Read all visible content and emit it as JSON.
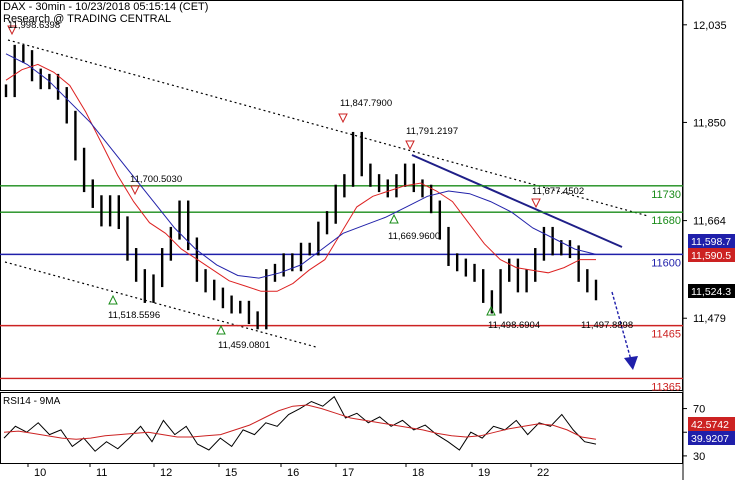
{
  "header": {
    "line1": "DAX - 30min - 10/23/2018 05:15:14 (CET)",
    "line2": "Research @ TRADING CENTRAL"
  },
  "chart_data": [
    {
      "type": "line",
      "title": "DAX - 30min",
      "y_ticks": [
        12035,
        11850,
        11664,
        11479
      ],
      "y_tick_labels": [
        "12,035",
        "11,850",
        "11,664",
        "11,479"
      ],
      "ylim": [
        11343,
        12082
      ],
      "x_tick_labels": [
        "10",
        "11",
        "12",
        "15",
        "16",
        "17",
        "18",
        "19",
        "22"
      ],
      "grid": false,
      "horizontal_levels": [
        {
          "label": "11730",
          "value": 11730,
          "color": "#1a8c1a"
        },
        {
          "label": "11680",
          "value": 11680,
          "color": "#1a8c1a"
        },
        {
          "label": "11600",
          "value": 11600,
          "color": "#1f1faa"
        },
        {
          "label": "11465",
          "value": 11465,
          "color": "#cc2222"
        },
        {
          "label": "11365",
          "value": 11365,
          "color": "#cc2222"
        }
      ],
      "price_tags": [
        {
          "label": "11,598.7",
          "value": 11598.7,
          "color": "#1f1faa"
        },
        {
          "label": "11,590.5",
          "value": 11590.5,
          "color": "#cc2222"
        },
        {
          "label": "11,524.3",
          "value": 11524.3,
          "color": "#000000"
        }
      ],
      "annotations": [
        {
          "label": "11,998.6398",
          "value": 11998.6398,
          "marker": "down"
        },
        {
          "label": "11,847.7900",
          "value": 11847.79,
          "marker": "down"
        },
        {
          "label": "11,791.2197",
          "value": 11791.2197,
          "marker": "down"
        },
        {
          "label": "11,700.5030",
          "value": 11700.503,
          "marker": "down"
        },
        {
          "label": "11,677.4502",
          "value": 11677.4502,
          "marker": "down"
        },
        {
          "label": "11,669.9600",
          "value": 11669.96,
          "marker": "up"
        },
        {
          "label": "11,518.5596",
          "value": 11518.5596,
          "marker": "up"
        },
        {
          "label": "11,459.0801",
          "value": 11459.0801,
          "marker": "up"
        },
        {
          "label": "11,498.6904",
          "value": 11498.6904,
          "marker": "up"
        },
        {
          "label": "11,497.8898",
          "value": 11497.8898,
          "marker": "none"
        }
      ],
      "series": [
        {
          "name": "DAX",
          "kind": "bars",
          "color": "#000000",
          "values": [
            11910,
            11985,
            11975,
            11940,
            11925,
            11930,
            11905,
            11860,
            11790,
            11730,
            11700,
            11665,
            11700,
            11660,
            11600,
            11560,
            11520,
            11550,
            11600,
            11640,
            11690,
            11620,
            11560,
            11540,
            11525,
            11510,
            11500,
            11500,
            11480,
            11470,
            11560,
            11570,
            11590,
            11580,
            11610,
            11610,
            11650,
            11670,
            11720,
            11740,
            11820,
            11760,
            11740,
            11730,
            11720,
            11740,
            11760,
            11730,
            11720,
            11690,
            11640,
            11590,
            11580,
            11570,
            11560,
            11520,
            11500,
            11560,
            11580,
            11540,
            11560,
            11600,
            11640,
            11610,
            11615,
            11605,
            11560,
            11540,
            11525
          ]
        },
        {
          "name": "MA fast",
          "kind": "line",
          "color": "#dd2222",
          "values": [
            11930,
            11950,
            11960,
            11945,
            11920,
            11870,
            11810,
            11750,
            11700,
            11660,
            11640,
            11610,
            11590,
            11570,
            11550,
            11540,
            11530,
            11530,
            11545,
            11570,
            11590,
            11640,
            11690,
            11710,
            11720,
            11730,
            11735,
            11720,
            11700,
            11660,
            11620,
            11590,
            11575,
            11570,
            11565,
            11575,
            11590,
            11590
          ]
        },
        {
          "name": "MA slow",
          "kind": "line",
          "color": "#2222aa",
          "values": [
            11980,
            11960,
            11930,
            11890,
            11850,
            11800,
            11750,
            11700,
            11650,
            11610,
            11580,
            11560,
            11555,
            11565,
            11580,
            11610,
            11640,
            11655,
            11670,
            11690,
            11710,
            11720,
            11715,
            11700,
            11680,
            11650,
            11630,
            11610,
            11600
          ]
        }
      ]
    },
    {
      "type": "line",
      "title": "RSI14 - 9MA",
      "y_ticks": [
        70,
        50,
        30
      ],
      "ylim": [
        24,
        84
      ],
      "price_tags": [
        {
          "label": "42.5742",
          "value": 42.5742,
          "color": "#cc2222"
        },
        {
          "label": "39.9207",
          "value": 39.9207,
          "color": "#1f1faa"
        }
      ],
      "series": [
        {
          "name": "RSI14",
          "color": "#000000",
          "values": [
            45,
            55,
            50,
            58,
            48,
            52,
            38,
            45,
            34,
            42,
            36,
            45,
            55,
            42,
            60,
            48,
            55,
            40,
            35,
            45,
            38,
            52,
            48,
            58,
            55,
            65,
            70,
            76,
            72,
            80,
            62,
            66,
            58,
            63,
            55,
            60,
            52,
            56,
            48,
            42,
            35,
            50,
            45,
            55,
            52,
            60,
            48,
            58,
            55,
            65,
            52,
            42,
            40
          ]
        },
        {
          "name": "9MA",
          "color": "#cc2222",
          "values": [
            50,
            51,
            49,
            47,
            45,
            44,
            45,
            47,
            48,
            49,
            50,
            48,
            46,
            46,
            47,
            48,
            52,
            56,
            62,
            68,
            72,
            73,
            70,
            66,
            62,
            60,
            58,
            56,
            54,
            52,
            49,
            47,
            46,
            47,
            50,
            53,
            55,
            57,
            56,
            52,
            46,
            44
          ]
        }
      ]
    }
  ]
}
